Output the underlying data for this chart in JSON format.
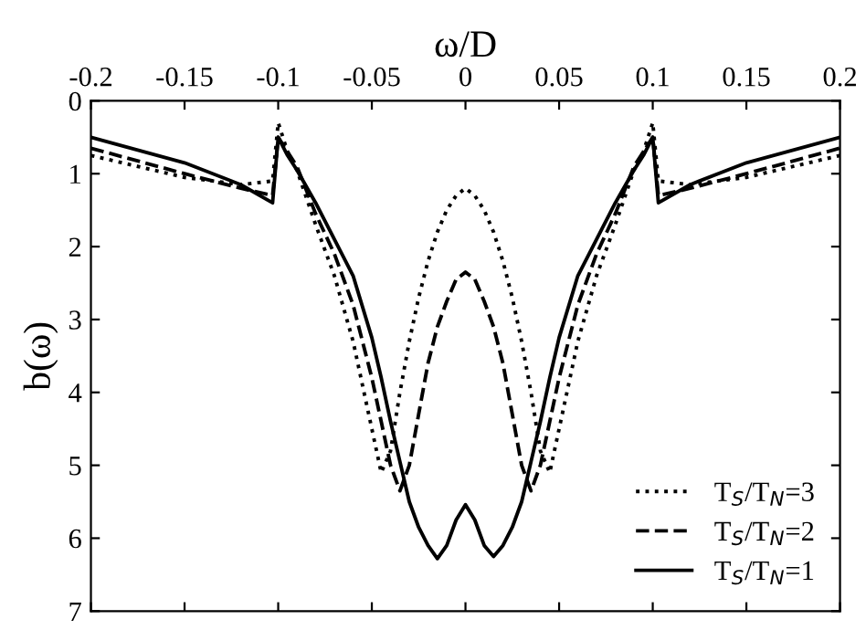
{
  "chart_data": {
    "type": "line",
    "xlabel": "ω/D",
    "ylabel": "b(ω)",
    "x": [
      -0.2,
      -0.15,
      -0.12,
      -0.103,
      -0.1,
      -0.095,
      -0.09,
      -0.08,
      -0.07,
      -0.06,
      -0.05,
      -0.045,
      -0.04,
      -0.035,
      -0.03,
      -0.025,
      -0.02,
      -0.015,
      -0.01,
      -0.005,
      0,
      0.005,
      0.01,
      0.015,
      0.02,
      0.025,
      0.03,
      0.035,
      0.04,
      0.045,
      0.05,
      0.06,
      0.07,
      0.08,
      0.09,
      0.095,
      0.1,
      0.103,
      0.12,
      0.15,
      0.2
    ],
    "series": [
      {
        "name": "T$_{S}$/T$_{N}$=3",
        "color": "#000000",
        "line_style": "dotted",
        "values": [
          0.75,
          1.05,
          1.15,
          1.1,
          0.3,
          0.7,
          0.95,
          1.7,
          2.4,
          3.3,
          4.5,
          5.1,
          4.8,
          4.0,
          3.3,
          2.7,
          2.2,
          1.8,
          1.5,
          1.3,
          1.2,
          1.3,
          1.5,
          1.8,
          2.2,
          2.7,
          3.3,
          4.0,
          4.8,
          5.1,
          4.5,
          3.3,
          2.4,
          1.7,
          0.95,
          0.7,
          0.3,
          1.1,
          1.15,
          1.05,
          0.75
        ]
      },
      {
        "name": "T$_{S}$/T$_{N}$=2",
        "color": "#000000",
        "line_style": "dashed",
        "values": [
          0.65,
          1.0,
          1.2,
          1.3,
          0.5,
          0.7,
          0.9,
          1.55,
          2.1,
          2.8,
          3.8,
          4.4,
          5.0,
          5.35,
          5.0,
          4.3,
          3.6,
          3.1,
          2.75,
          2.45,
          2.35,
          2.45,
          2.75,
          3.1,
          3.6,
          4.3,
          5.0,
          5.35,
          5.0,
          4.4,
          3.8,
          2.8,
          2.1,
          1.55,
          0.9,
          0.7,
          0.5,
          1.3,
          1.2,
          1.0,
          0.65
        ]
      },
      {
        "name": "T$_{S}$/T$_{N}$=1",
        "color": "#000000",
        "line_style": "solid",
        "values": [
          0.5,
          0.85,
          1.15,
          1.4,
          0.5,
          0.75,
          0.95,
          1.4,
          1.9,
          2.4,
          3.25,
          3.8,
          4.4,
          4.95,
          5.5,
          5.85,
          6.1,
          6.28,
          6.1,
          5.75,
          5.54,
          5.75,
          6.1,
          6.25,
          6.1,
          5.85,
          5.5,
          4.95,
          4.4,
          3.8,
          3.25,
          2.4,
          1.9,
          1.4,
          0.95,
          0.75,
          0.5,
          1.4,
          1.15,
          0.85,
          0.5
        ]
      }
    ],
    "xlim": [
      -0.2,
      0.2
    ],
    "xticks": [
      -0.2,
      -0.15,
      -0.1,
      -0.05,
      0,
      0.05,
      0.1,
      0.15,
      0.2
    ],
    "ylim": [
      7,
      0
    ],
    "yticks": [
      0,
      1,
      2,
      3,
      4,
      5,
      6,
      7
    ],
    "legend": "bottom right",
    "grid": false
  }
}
